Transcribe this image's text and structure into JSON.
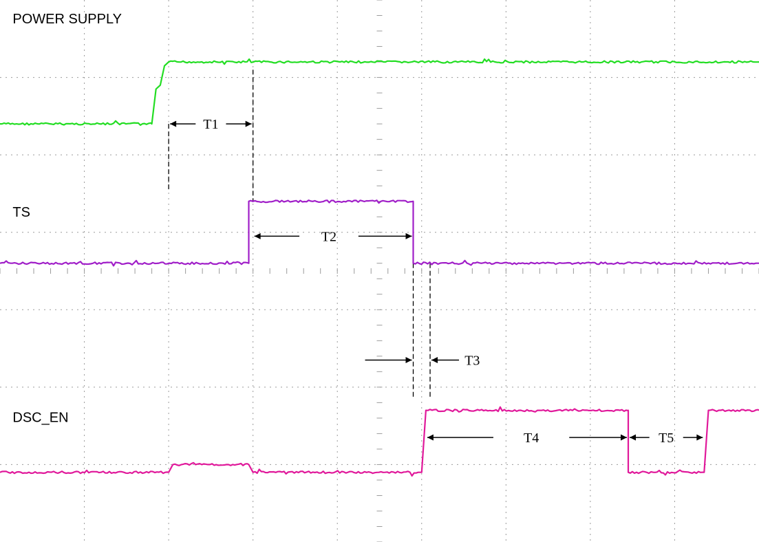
{
  "chart_data": {
    "type": "line",
    "title": "",
    "xlabel": "",
    "ylabel": "",
    "grid": true,
    "x_divisions": 9,
    "y_divisions": 7,
    "xlim": [
      0,
      9
    ],
    "ylim": [
      0,
      7
    ],
    "series": [
      {
        "name": "POWER SUPPLY",
        "color": "#22dd22",
        "label_pos": [
          0.15,
          6.7
        ],
        "points": [
          [
            0,
            5.4
          ],
          [
            1.8,
            5.4
          ],
          [
            1.85,
            5.85
          ],
          [
            1.9,
            5.9
          ],
          [
            1.95,
            6.15
          ],
          [
            2.0,
            6.2
          ],
          [
            9,
            6.2
          ]
        ]
      },
      {
        "name": "TS",
        "color": "#a01ec8",
        "label_pos": [
          0.15,
          4.2
        ],
        "points": [
          [
            0,
            3.6
          ],
          [
            2.95,
            3.6
          ],
          [
            2.95,
            4.4
          ],
          [
            4.9,
            4.4
          ],
          [
            4.9,
            3.6
          ],
          [
            9,
            3.6
          ]
        ]
      },
      {
        "name": "DSC_EN",
        "color": "#e0189a",
        "label_pos": [
          0.15,
          1.55
        ],
        "points": [
          [
            0,
            0.9
          ],
          [
            2.0,
            0.9
          ],
          [
            2.05,
            1.0
          ],
          [
            2.95,
            1.0
          ],
          [
            3.0,
            0.9
          ],
          [
            5.0,
            0.9
          ],
          [
            5.05,
            1.7
          ],
          [
            7.45,
            1.7
          ],
          [
            7.45,
            0.9
          ],
          [
            8.35,
            0.9
          ],
          [
            8.4,
            1.7
          ],
          [
            9,
            1.7
          ]
        ]
      }
    ],
    "markers": [
      {
        "x": 2.0,
        "y0": 5.4,
        "y1": 4.55
      },
      {
        "x": 3.0,
        "y0": 6.1,
        "y1": 4.4
      },
      {
        "x": 4.9,
        "y0": 3.6,
        "y1": 1.85
      },
      {
        "x": 5.1,
        "y0": 3.6,
        "y1": 1.85
      }
    ],
    "annotations": [
      {
        "text": "T1",
        "y": 5.4,
        "left": 2.0,
        "right": 3.0,
        "label_x": 2.5,
        "gap": 0.18
      },
      {
        "text": "T2",
        "y": 3.95,
        "left": 3.0,
        "right": 4.9,
        "label_x": 3.9,
        "gap": 0.35
      },
      {
        "text": "T3",
        "y": 2.35,
        "left": 4.9,
        "right": 5.1,
        "label_x": 5.6,
        "outside": true
      },
      {
        "text": "T4",
        "y": 1.35,
        "left": 5.05,
        "right": 7.45,
        "label_x": 6.3,
        "gap": 0.45
      },
      {
        "text": "T5",
        "y": 1.35,
        "left": 7.45,
        "right": 8.35,
        "label_x": 7.9,
        "gap": 0.2
      }
    ]
  }
}
